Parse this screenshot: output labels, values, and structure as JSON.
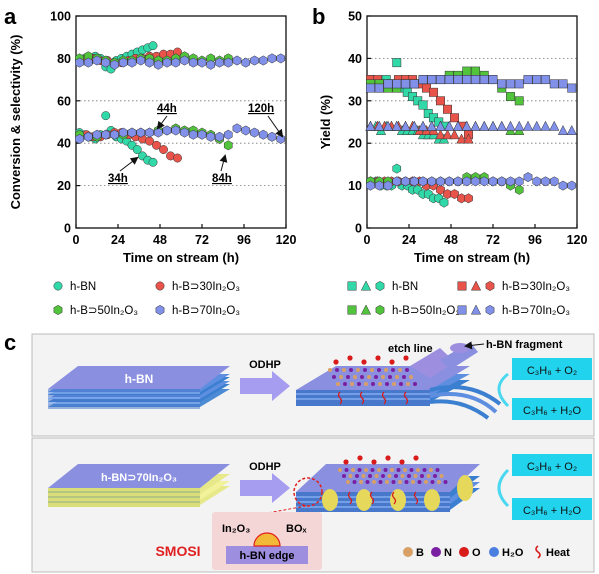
{
  "panel_labels": {
    "a": "a",
    "b": "b",
    "c": "c"
  },
  "colors": {
    "hBN": "#32d9a8",
    "p30": "#e8534a",
    "p50": "#52c43c",
    "p70": "#8190e8",
    "layer_top": "#8a8fe0",
    "layer_mid": "#3b7fd0",
    "layer_yellow": "#e6e88a",
    "gas_box": "#22d3ee",
    "arrow": "#a69cf0",
    "smosi": "#e02020"
  },
  "chart_data": [
    {
      "id": "a",
      "type": "scatter",
      "title": "",
      "xlabel": "Time on stream (h)",
      "ylabel": "Conversion & selectivity (%)",
      "xlim": [
        0,
        120
      ],
      "ylim": [
        0,
        100
      ],
      "xticks": [
        "0",
        "24",
        "48",
        "72",
        "96",
        "120"
      ],
      "yticks": [
        "0",
        "20",
        "40",
        "60",
        "80",
        "100"
      ],
      "grid": "dotted horizontal",
      "legend_placement": "bottom",
      "annotations": [
        "34h",
        "44h",
        "84h",
        "120h"
      ],
      "series": [
        {
          "name": "h-BN",
          "marker": "circle",
          "group": "selectivity",
          "x": [
            2,
            5,
            8,
            11,
            14,
            17,
            20,
            23,
            26,
            29,
            32,
            35,
            38,
            41,
            44
          ],
          "y": [
            79,
            80,
            79,
            81,
            80,
            76,
            75,
            79,
            80,
            81,
            82,
            83,
            84,
            85,
            86
          ]
        },
        {
          "name": "h-BN",
          "marker": "circle",
          "group": "conversion",
          "x": [
            2,
            5,
            8,
            11,
            14,
            17,
            20,
            23,
            26,
            29,
            32,
            35,
            38,
            41,
            44
          ],
          "y": [
            45,
            44,
            43,
            42,
            44,
            53,
            46,
            43,
            42,
            41,
            39,
            37,
            34,
            32,
            31
          ]
        },
        {
          "name": "h-B⊃30In2O3",
          "marker": "circle",
          "group": "selectivity",
          "x": [
            2,
            6,
            10,
            14,
            18,
            22,
            26,
            30,
            34,
            38,
            42,
            46,
            50,
            54,
            58
          ],
          "y": [
            79,
            80,
            80,
            79,
            79,
            78,
            78,
            79,
            80,
            80,
            81,
            81,
            82,
            82,
            83
          ]
        },
        {
          "name": "h-B⊃30In2O3",
          "marker": "circle",
          "group": "conversion",
          "x": [
            2,
            6,
            10,
            14,
            18,
            22,
            26,
            30,
            34,
            38,
            42,
            46,
            50,
            54,
            58
          ],
          "y": [
            44,
            44,
            43,
            43,
            44,
            45,
            45,
            44,
            43,
            42,
            41,
            39,
            37,
            34,
            33
          ]
        },
        {
          "name": "h-B⊃50In2O3",
          "marker": "hexagon",
          "group": "selectivity",
          "x": [
            2,
            7,
            12,
            17,
            22,
            27,
            32,
            37,
            42,
            47,
            52,
            57,
            62,
            67,
            72,
            77,
            82,
            87
          ],
          "y": [
            80,
            81,
            80,
            79,
            78,
            79,
            79,
            80,
            80,
            79,
            79,
            80,
            81,
            80,
            79,
            80,
            79,
            80
          ]
        },
        {
          "name": "h-B⊃50In2O3",
          "marker": "hexagon",
          "group": "conversion",
          "x": [
            2,
            7,
            12,
            17,
            22,
            27,
            32,
            37,
            42,
            47,
            52,
            57,
            62,
            67,
            72,
            77,
            82,
            87
          ],
          "y": [
            44,
            43,
            43,
            44,
            44,
            44,
            45,
            45,
            45,
            46,
            46,
            47,
            46,
            46,
            45,
            44,
            42,
            39
          ]
        },
        {
          "name": "h-B⊃70In2O3",
          "marker": "hexagon",
          "group": "selectivity",
          "x": [
            2,
            7,
            12,
            17,
            22,
            27,
            32,
            37,
            42,
            47,
            52,
            57,
            62,
            67,
            72,
            77,
            82,
            87,
            92,
            97,
            102,
            107,
            112,
            117
          ],
          "y": [
            78,
            78,
            79,
            78,
            77,
            78,
            78,
            79,
            78,
            77,
            78,
            78,
            79,
            78,
            78,
            77,
            78,
            78,
            79,
            78,
            79,
            79,
            80,
            80
          ]
        },
        {
          "name": "h-B⊃70In2O3",
          "marker": "hexagon",
          "group": "conversion",
          "x": [
            2,
            7,
            12,
            17,
            22,
            27,
            32,
            37,
            42,
            47,
            52,
            57,
            62,
            67,
            72,
            77,
            82,
            87,
            92,
            97,
            102,
            107,
            112,
            117
          ],
          "y": [
            42,
            43,
            44,
            44,
            44,
            45,
            45,
            45,
            45,
            45,
            46,
            46,
            45,
            44,
            44,
            43,
            43,
            44,
            47,
            46,
            45,
            44,
            43,
            42
          ]
        }
      ]
    },
    {
      "id": "b",
      "type": "scatter",
      "title": "",
      "xlabel": "Time on stream (h)",
      "ylabel": "Yield (%)",
      "xlim": [
        0,
        120
      ],
      "ylim": [
        0,
        50
      ],
      "xticks": [
        "0",
        "24",
        "48",
        "72",
        "96",
        "120"
      ],
      "yticks": [
        "0",
        "10",
        "20",
        "30",
        "40",
        "50"
      ],
      "grid": "dotted horizontal",
      "legend_placement": "bottom",
      "series": [
        {
          "name": "h-BN",
          "marker": "square",
          "x": [
            2,
            5,
            8,
            11,
            14,
            17,
            20,
            23,
            26,
            29,
            32,
            35,
            38,
            41,
            44
          ],
          "y": [
            35,
            34,
            33,
            35,
            34,
            39,
            33,
            32,
            31,
            30,
            29,
            27,
            26,
            25,
            24
          ]
        },
        {
          "name": "h-BN",
          "marker": "triangle",
          "x": [
            2,
            5,
            8,
            11,
            14,
            17,
            20,
            23,
            26,
            29,
            32,
            35,
            38,
            41,
            44
          ],
          "y": [
            24,
            24,
            23,
            24,
            24,
            24,
            23,
            23,
            23,
            23,
            22,
            22,
            22,
            21,
            21
          ]
        },
        {
          "name": "h-BN",
          "marker": "hexagon",
          "x": [
            2,
            5,
            8,
            11,
            14,
            17,
            20,
            23,
            26,
            29,
            32,
            35,
            38,
            41,
            44
          ],
          "y": [
            11,
            11,
            10,
            10,
            10,
            14,
            10,
            10,
            9,
            9,
            8,
            8,
            7,
            7,
            6
          ]
        },
        {
          "name": "h-B⊃30In2O3",
          "marker": "square",
          "x": [
            2,
            6,
            10,
            14,
            18,
            22,
            26,
            30,
            34,
            38,
            42,
            46,
            50,
            54,
            58
          ],
          "y": [
            35,
            35,
            34,
            34,
            35,
            35,
            35,
            34,
            33,
            32,
            30,
            28,
            26,
            24,
            22
          ]
        },
        {
          "name": "h-B⊃30In2O3",
          "marker": "triangle",
          "x": [
            2,
            6,
            10,
            14,
            18,
            22,
            26,
            30,
            34,
            38,
            42,
            46,
            50,
            54,
            58
          ],
          "y": [
            24,
            24,
            24,
            24,
            24,
            24,
            24,
            23,
            23,
            23,
            22,
            22,
            22,
            21,
            21
          ]
        },
        {
          "name": "h-B⊃30In2O3",
          "marker": "hexagon",
          "x": [
            2,
            6,
            10,
            14,
            18,
            22,
            26,
            30,
            34,
            38,
            42,
            46,
            50,
            54,
            58
          ],
          "y": [
            11,
            11,
            11,
            11,
            11,
            11,
            11,
            11,
            10,
            10,
            9,
            8,
            8,
            7,
            7
          ]
        },
        {
          "name": "h-B⊃50In2O3",
          "marker": "square",
          "x": [
            2,
            7,
            12,
            17,
            22,
            27,
            32,
            37,
            42,
            47,
            52,
            57,
            62,
            67,
            72,
            77,
            82,
            87
          ],
          "y": [
            34,
            34,
            33,
            33,
            34,
            34,
            35,
            35,
            35,
            36,
            36,
            37,
            37,
            36,
            35,
            33,
            31,
            30
          ]
        },
        {
          "name": "h-B⊃50In2O3",
          "marker": "triangle",
          "x": [
            2,
            7,
            12,
            17,
            22,
            27,
            32,
            37,
            42,
            47,
            52,
            57,
            62,
            67,
            72,
            77,
            82,
            87
          ],
          "y": [
            24,
            24,
            24,
            24,
            24,
            24,
            24,
            24,
            24,
            24,
            24,
            24,
            24,
            24,
            24,
            24,
            23,
            23
          ]
        },
        {
          "name": "h-B⊃50In2O3",
          "marker": "hexagon",
          "x": [
            2,
            7,
            12,
            17,
            22,
            27,
            32,
            37,
            42,
            47,
            52,
            57,
            62,
            67,
            72,
            77,
            82,
            87
          ],
          "y": [
            11,
            11,
            11,
            11,
            11,
            11,
            11,
            11,
            11,
            11,
            11,
            12,
            12,
            12,
            11,
            11,
            10,
            9
          ]
        },
        {
          "name": "h-B⊃70In2O3",
          "marker": "square",
          "x": [
            2,
            7,
            12,
            17,
            22,
            27,
            32,
            37,
            42,
            47,
            52,
            57,
            62,
            67,
            72,
            77,
            82,
            87,
            92,
            97,
            102,
            107,
            112,
            117
          ],
          "y": [
            33,
            33,
            34,
            34,
            34,
            34,
            35,
            35,
            35,
            35,
            35,
            35,
            35,
            35,
            35,
            34,
            34,
            34,
            35,
            35,
            35,
            34,
            34,
            33
          ]
        },
        {
          "name": "h-B⊃70In2O3",
          "marker": "triangle",
          "x": [
            2,
            7,
            12,
            17,
            22,
            27,
            32,
            37,
            42,
            47,
            52,
            57,
            62,
            67,
            72,
            77,
            82,
            87,
            92,
            97,
            102,
            107,
            112,
            117
          ],
          "y": [
            24,
            24,
            24,
            24,
            24,
            24,
            24,
            24,
            24,
            24,
            24,
            24,
            24,
            24,
            24,
            24,
            24,
            24,
            24,
            24,
            24,
            24,
            23,
            23
          ]
        },
        {
          "name": "h-B⊃70In2O3",
          "marker": "hexagon",
          "x": [
            2,
            7,
            12,
            17,
            22,
            27,
            32,
            37,
            42,
            47,
            52,
            57,
            62,
            67,
            72,
            77,
            82,
            87,
            92,
            97,
            102,
            107,
            112,
            117
          ],
          "y": [
            10,
            10,
            10,
            11,
            11,
            11,
            11,
            11,
            11,
            11,
            11,
            11,
            11,
            11,
            11,
            11,
            11,
            11,
            12,
            11,
            11,
            11,
            10,
            10
          ]
        }
      ]
    }
  ],
  "legend_a": [
    {
      "label": "h-BN",
      "marker": "circle",
      "color_key": "hBN"
    },
    {
      "label": "h-B⊃30In₂O₃",
      "marker": "circle",
      "color_key": "p30"
    },
    {
      "label": "h-B⊃50In₂O₃",
      "marker": "hexagon",
      "color_key": "p50"
    },
    {
      "label": "h-B⊃70In₂O₃",
      "marker": "hexagon",
      "color_key": "p70"
    }
  ],
  "legend_b": [
    {
      "label": "h-BN",
      "color_key": "hBN"
    },
    {
      "label": "h-B⊃30In₂O₃",
      "color_key": "p30"
    },
    {
      "label": "h-B⊃50In₂O₃",
      "color_key": "p50"
    },
    {
      "label": "h-B⊃70In₂O₃",
      "color_key": "p70"
    }
  ],
  "schematic": {
    "top": {
      "material_label": "h-BN",
      "process_label": "ODHP",
      "etch_label": "etch line",
      "fragment_label": "h-BN fragment",
      "reactants": "C₃H₈ + O₂",
      "products": "C₃H₆ + H₂O"
    },
    "bottom": {
      "material_label": "h-BN⊃70In₂O₃",
      "process_label": "ODHP",
      "reactants": "C₃H₈ + O₂",
      "products": "C₃H₆ + H₂O",
      "smosi_label": "SMOSI",
      "in2o3_label": "In₂O₃",
      "box_label": "BOₓ",
      "edge_label": "h-BN edge"
    },
    "atom_legend": [
      {
        "label": "B",
        "color": "#d9a066"
      },
      {
        "label": "N",
        "color": "#7a1fa2"
      },
      {
        "label": "O",
        "color": "#d81b1b"
      },
      {
        "label": "H₂O",
        "color": "#4a7fe0"
      },
      {
        "label": "Heat",
        "color": "#d81b1b"
      }
    ]
  }
}
